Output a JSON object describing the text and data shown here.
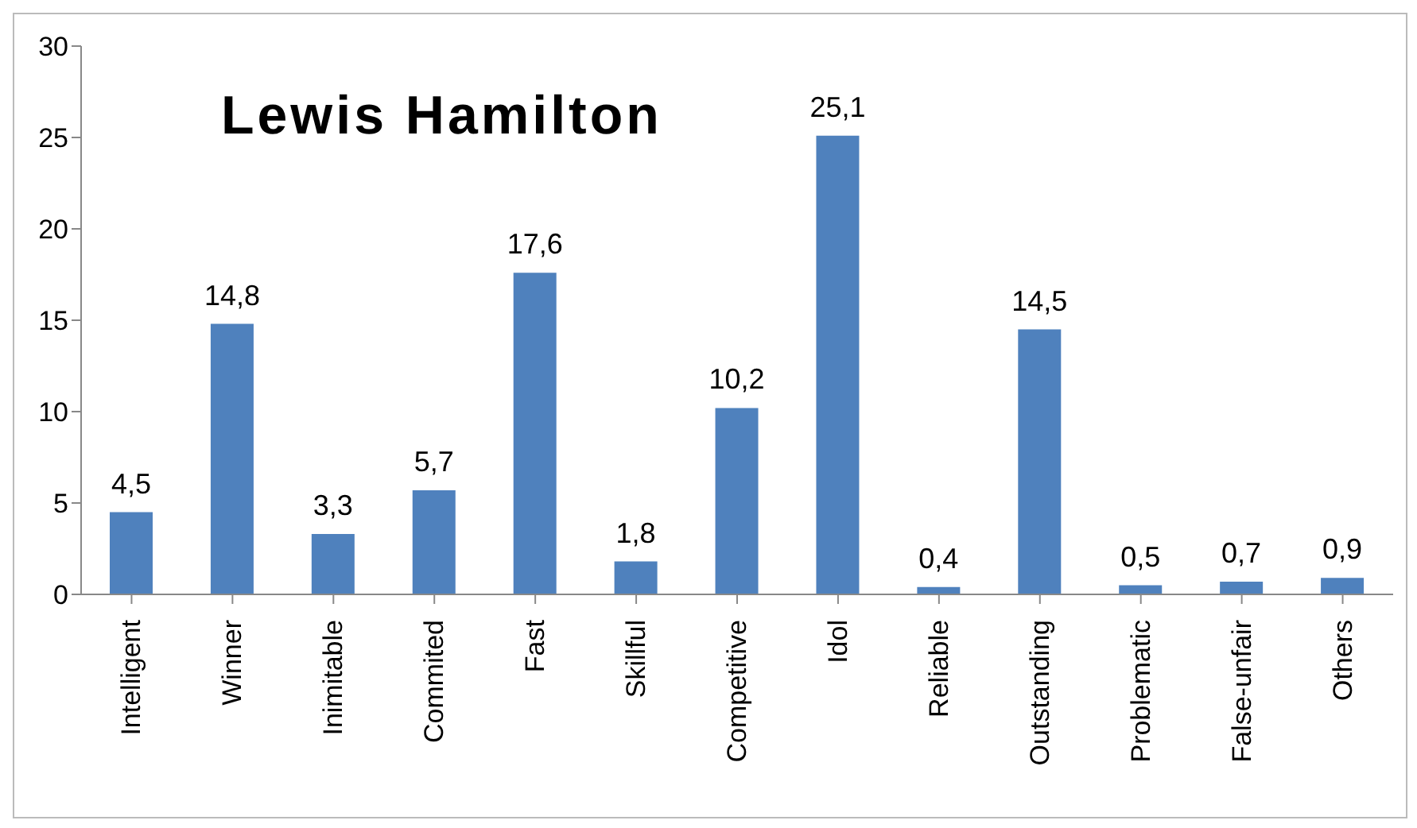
{
  "chart_data": {
    "type": "bar",
    "title": "Lewis Hamilton",
    "categories": [
      "Intelligent",
      "Winner",
      "Inimitable",
      "Commited",
      "Fast",
      "Skillful",
      "Competitive",
      "Idol",
      "Reliable",
      "Outstanding",
      "Problematic",
      "False-unfair",
      "Others"
    ],
    "values": [
      4.5,
      14.8,
      3.3,
      5.7,
      17.6,
      1.8,
      10.2,
      25.1,
      0.4,
      14.5,
      0.5,
      0.7,
      0.9
    ],
    "value_labels": [
      "4,5",
      "14,8",
      "3,3",
      "5,7",
      "17,6",
      "1,8",
      "10,2",
      "25,1",
      "0,4",
      "14,5",
      "0,5",
      "0,7",
      "0,9"
    ],
    "color": "#4f81bd",
    "ylim": [
      0,
      30
    ],
    "yticks": [
      0,
      5,
      10,
      15,
      20,
      25,
      30
    ],
    "grid": false,
    "legend": false
  }
}
